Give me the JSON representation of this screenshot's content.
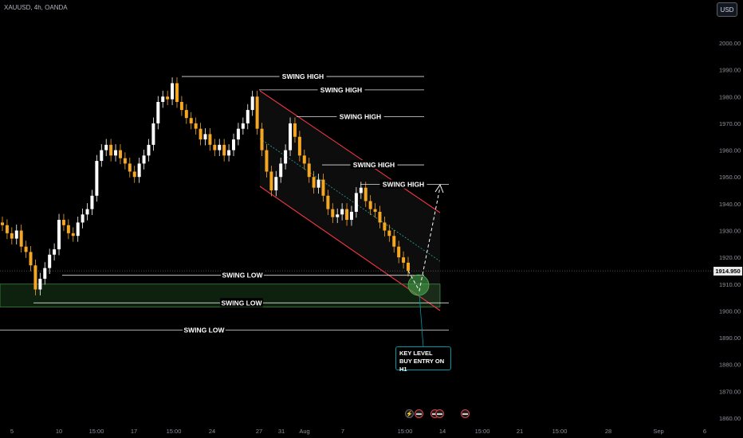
{
  "header": {
    "symbol": "XAUUSD, 4h, OANDA",
    "currency": "USD"
  },
  "price_tag": "1914.950",
  "callout": {
    "line1": "KEY LEVEL",
    "line2": "BUY ENTRY ON H1"
  },
  "chart_data": {
    "type": "candlestick",
    "x_ticks": [
      "5",
      "10",
      "15:00",
      "17",
      "15:00",
      "24",
      "27",
      "31",
      "Aug",
      "7",
      "15:00",
      "14",
      "15:00",
      "21",
      "15:00",
      "28",
      "Sep",
      "6"
    ],
    "y_ticks": [
      1860,
      1870,
      1880,
      1890,
      1900,
      1910,
      1920,
      1930,
      1940,
      1950,
      1960,
      1970,
      1980,
      1990,
      2000
    ],
    "ylim": [
      1858,
      2010
    ],
    "last_price": 1914.95,
    "annotations": [
      {
        "text": "SWING HIGH",
        "price": 1987.5
      },
      {
        "text": "SWING HIGH",
        "price": 1982.5
      },
      {
        "text": "SWING HIGH",
        "price": 1972.5
      },
      {
        "text": "SWING HIGH",
        "price": 1954.5
      },
      {
        "text": "SWING HIGH",
        "price": 1947.2
      },
      {
        "text": "SWING LOW",
        "price": 1913.3
      },
      {
        "text": "SWING LOW",
        "price": 1903.0
      },
      {
        "text": "SWING LOW",
        "price": 1892.8
      }
    ],
    "zones": [
      {
        "name": "demand-zone",
        "from": 1901.5,
        "to": 1910.0
      }
    ],
    "channel": {
      "upper": [
        [
          1982,
          1937
        ]
      ],
      "lower": [
        [
          1944,
          1901
        ]
      ]
    },
    "candles_close": [
      1932,
      1929,
      1927,
      1930,
      1924,
      1922,
      1917,
      1908,
      1912,
      1916,
      1921,
      1923,
      1934,
      1932,
      1929,
      1928,
      1933,
      1936,
      1938,
      1943,
      1956,
      1960,
      1962,
      1958,
      1960,
      1957,
      1955,
      1952,
      1950,
      1955,
      1958,
      1962,
      1970,
      1978,
      1980,
      1979,
      1985,
      1978,
      1975,
      1972,
      1970,
      1968,
      1964,
      1966,
      1962,
      1960,
      1962,
      1958,
      1960,
      1964,
      1968,
      1970,
      1975,
      1980,
      1968,
      1960,
      1952,
      1945,
      1950,
      1955,
      1960,
      1970,
      1965,
      1958,
      1955,
      1950,
      1946,
      1949,
      1943,
      1938,
      1935,
      1936,
      1938,
      1934,
      1937,
      1944,
      1946,
      1941,
      1938,
      1937,
      1933,
      1930,
      1928,
      1924,
      1920,
      1918,
      1915
    ]
  }
}
